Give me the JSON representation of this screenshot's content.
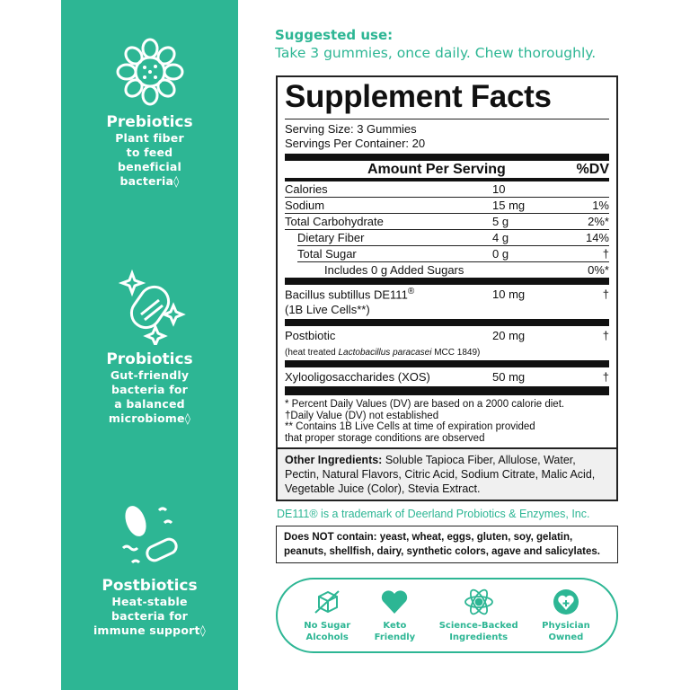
{
  "left": [
    {
      "icon": "prebiotic-flower-icon",
      "title": "Prebiotics",
      "lines": [
        "Plant fiber",
        "to feed",
        "beneficial",
        "bacteria◊"
      ]
    },
    {
      "icon": "probiotic-sparkle-icon",
      "title": "Probiotics",
      "lines": [
        "Gut-friendly",
        "bacteria for",
        "a balanced",
        "microbiome◊"
      ]
    },
    {
      "icon": "postbiotic-bacteria-icon",
      "title": "Postbiotics",
      "lines": [
        "Heat-stable",
        "bacteria for",
        "immune support◊"
      ]
    }
  ],
  "suggested": {
    "heading": "Suggested use:",
    "text": "Take 3 gummies, once daily. Chew thoroughly."
  },
  "facts": {
    "title": "Supplement Facts",
    "serving_size": "Serving Size: 3 Gummies",
    "servings": "Servings Per Container: 20",
    "aps": "Amount Per Serving",
    "dv": "%DV",
    "rows": [
      {
        "name": "Calories",
        "amt": "10",
        "dv": ""
      },
      {
        "name": "Sodium",
        "amt": "15 mg",
        "dv": "1%"
      },
      {
        "name": "Total Carbohydrate",
        "amt": "5 g",
        "dv": "2%*"
      },
      {
        "name": "Dietary Fiber",
        "amt": "4 g",
        "dv": "14%"
      },
      {
        "name": "Total Sugar",
        "amt": "0 g",
        "dv": "†"
      },
      {
        "name": "Includes 0 g Added Sugars",
        "amt": "",
        "dv": "0%*"
      }
    ],
    "bacillus": {
      "name": "Bacillus subtillus DE111",
      "reg": "®",
      "sub": "(1B Live Cells**)",
      "amt": "10 mg",
      "dv": "†"
    },
    "postbiotic": {
      "name": "Postbiotic",
      "sub1": "(heat treated ",
      "sub_italic": "Lactobacillus paracasei",
      "sub2": " MCC 1849)",
      "amt": "20 mg",
      "dv": "†"
    },
    "xos": {
      "name": "Xylooligosaccharides (XOS)",
      "amt": "50 mg",
      "dv": "†"
    },
    "footnotes": [
      "* Percent Daily Values (DV) are based on a 2000 calorie diet.",
      "†Daily Value (DV) not established",
      "** Contains 1B Live Cells at time of expiration provided",
      "that proper storage conditions are observed"
    ]
  },
  "other": {
    "label": "Other Ingredients:",
    "text": " Soluble Tapioca Fiber, Allulose, Water, Pectin, Natural Flavors, Citric Acid, Sodium Citrate, Malic Acid, Vegetable Juice (Color), Stevia Extract."
  },
  "trademark": "DE111® is a trademark of Deerland Probiotics & Enzymes, Inc.",
  "does_not_contain": "Does NOT contain: yeast, wheat, eggs, gluten, soy, gelatin, peanuts, shellfish, dairy, synthetic colors, agave and salicylates.",
  "badges": [
    {
      "icon": "no-sugar-cube-icon",
      "l1": "No Sugar",
      "l2": "Alcohols"
    },
    {
      "icon": "heart-icon",
      "l1": "Keto",
      "l2": "Friendly"
    },
    {
      "icon": "atom-icon",
      "l1": "Science-Backed",
      "l2": "Ingredients"
    },
    {
      "icon": "physician-heart-icon",
      "l1": "Physician",
      "l2": "Owned"
    }
  ],
  "colors": {
    "brand": "#2db694"
  }
}
